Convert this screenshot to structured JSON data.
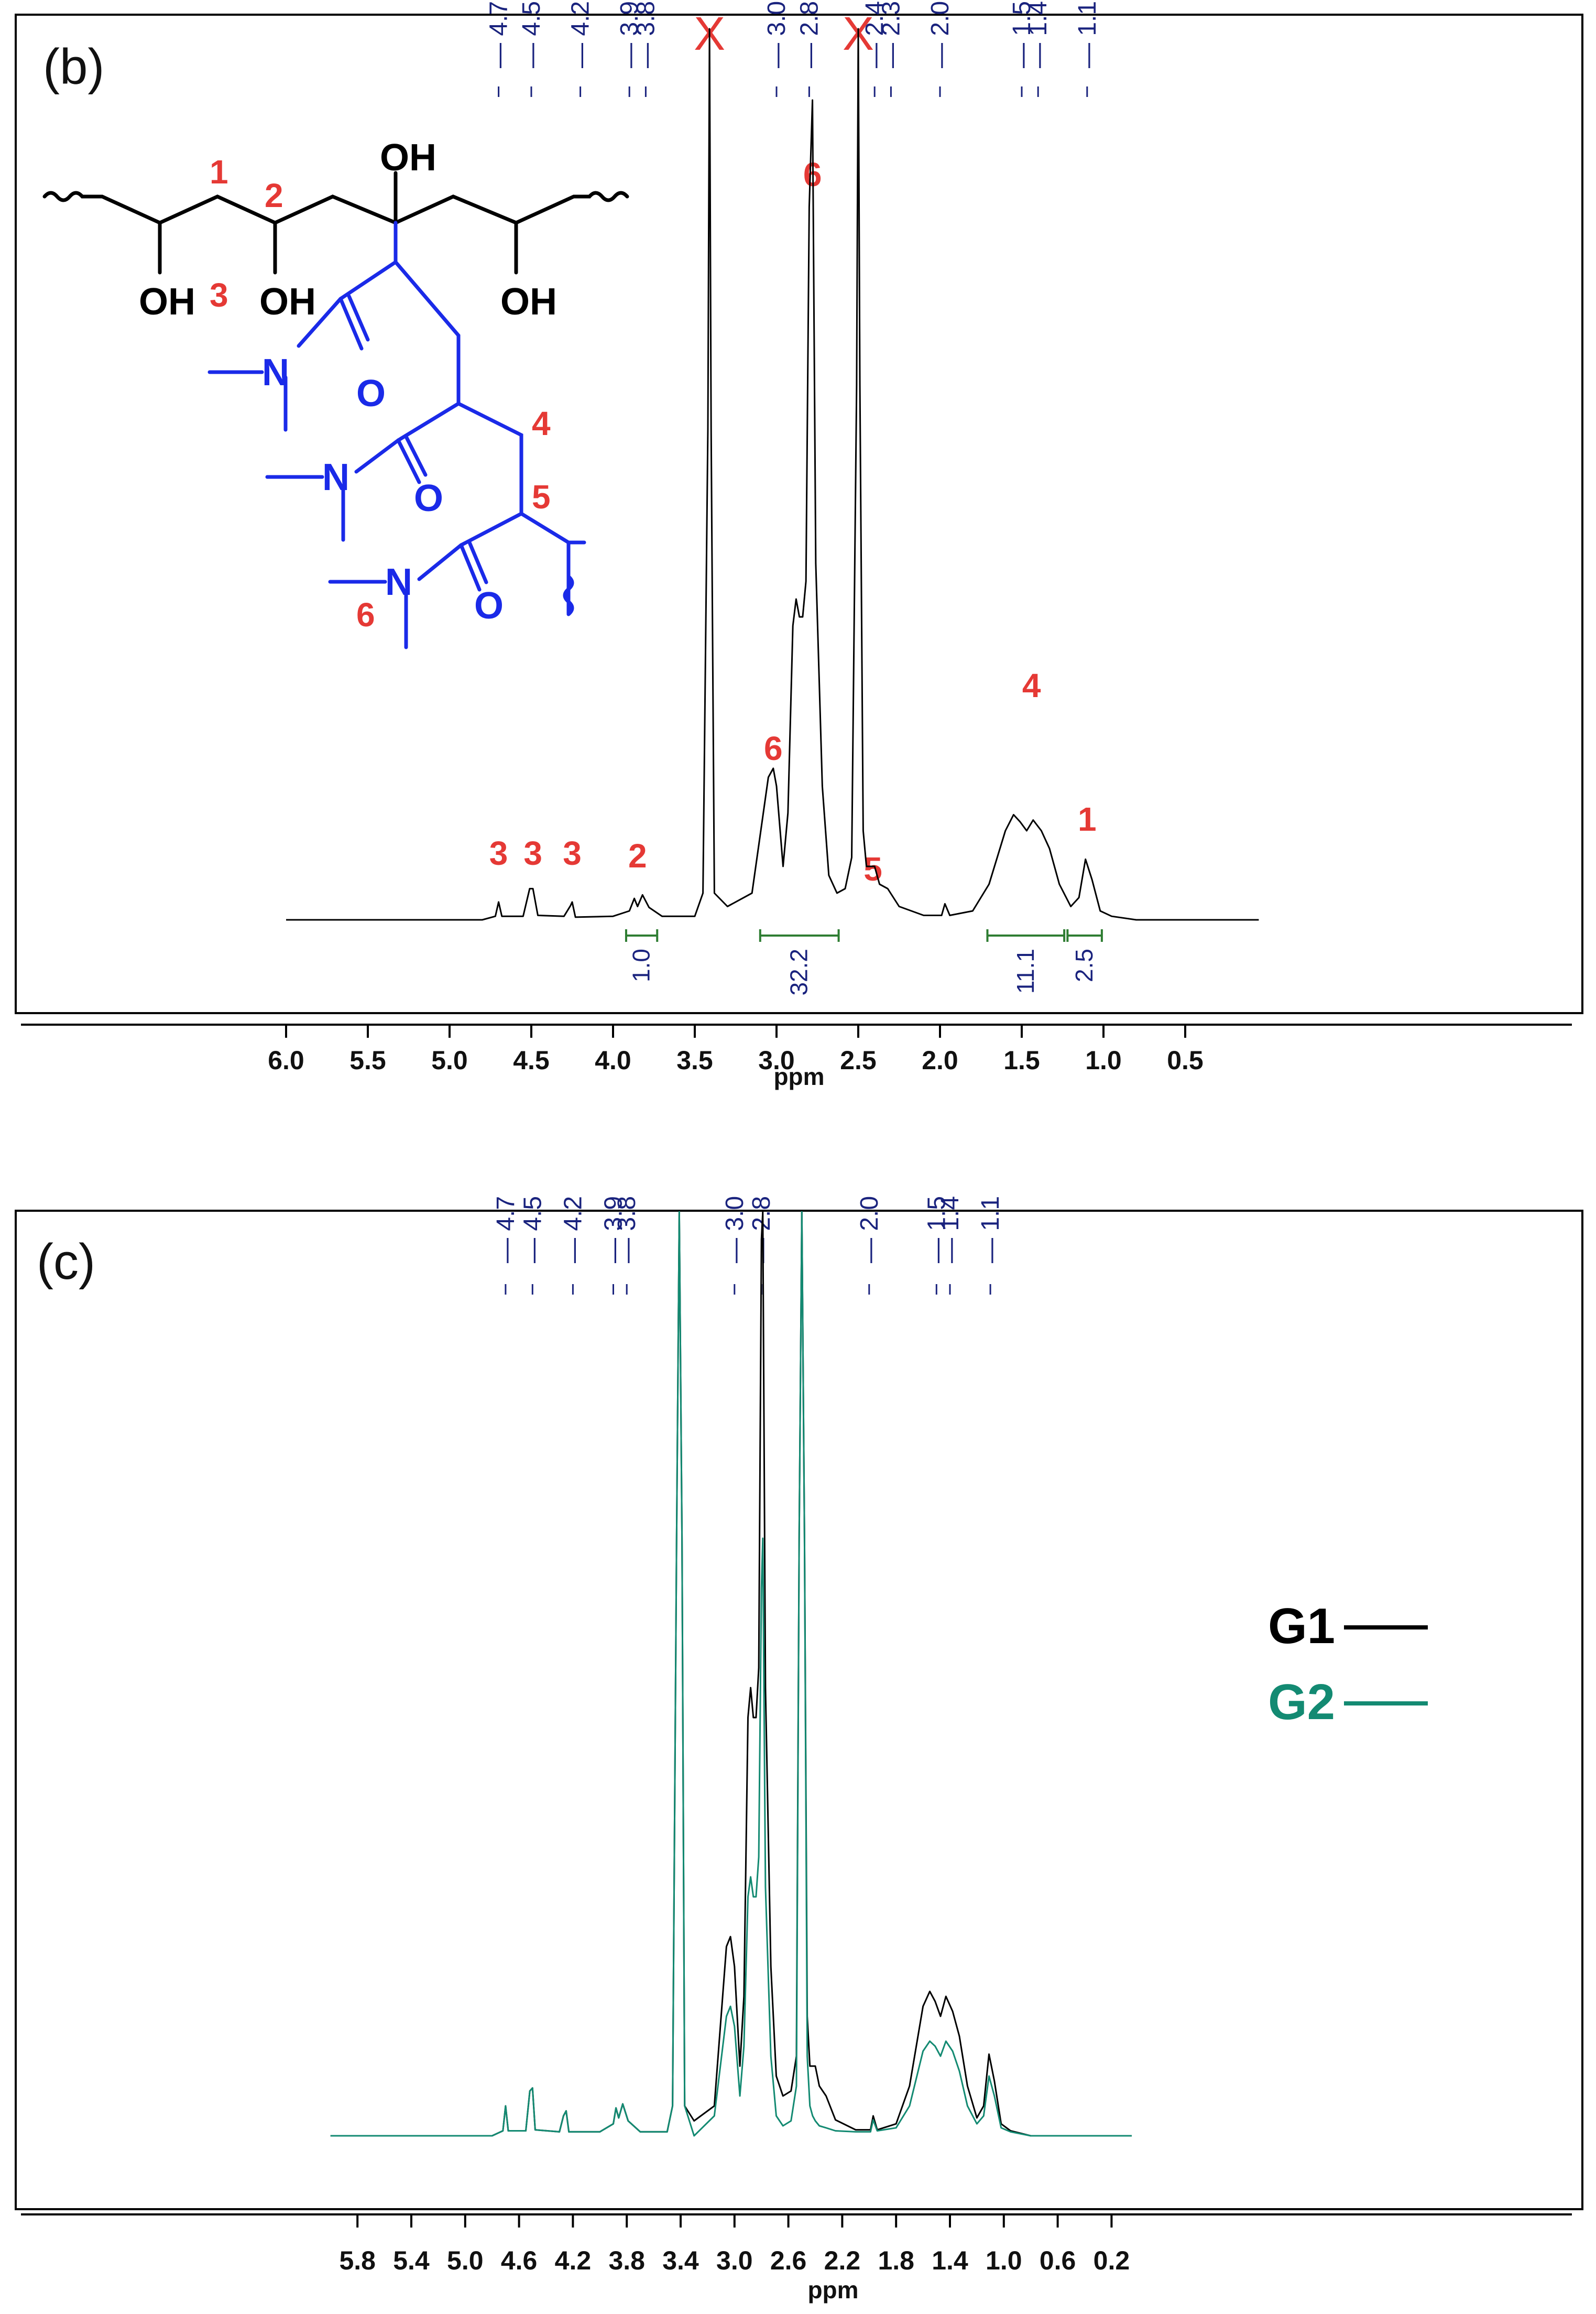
{
  "colors": {
    "black_series": "#000000",
    "green_series": "#138a72",
    "peak_label_blue": "#1a237e",
    "assignment_red": "#e53935",
    "integral_green": "#2e7d32",
    "structure_blue": "#1a2ae8"
  },
  "chart_data": [
    {
      "type": "line",
      "panel": "(b)",
      "xlabel": "ppm",
      "xlim": [
        6.0,
        0.0
      ],
      "x_ticks": [
        "6.0",
        "5.5",
        "5.0",
        "4.5",
        "4.0",
        "3.5",
        "3.0",
        "2.5",
        "2.0",
        "1.5",
        "1.0",
        "0.5"
      ],
      "peak_labels": [
        "4.7",
        "4.5",
        "4.2",
        "3.9",
        "3.8",
        "3.0",
        "2.8",
        "2.4",
        "2.3",
        "2.0",
        "1.5",
        "1.4",
        "1.1"
      ],
      "excluded_peaks": [
        {
          "ppm": 3.41,
          "mark": "X"
        },
        {
          "ppm": 2.5,
          "mark": "X"
        }
      ],
      "integrals": [
        {
          "from": 3.92,
          "to": 3.73,
          "value": "1.0"
        },
        {
          "from": 3.1,
          "to": 2.62,
          "value": "32.2"
        },
        {
          "from": 1.71,
          "to": 1.24,
          "value": "11.1"
        },
        {
          "from": 1.22,
          "to": 1.01,
          "value": "2.5"
        }
      ],
      "assignments": [
        {
          "ppm": 4.7,
          "label": "3"
        },
        {
          "ppm": 4.49,
          "label": "3"
        },
        {
          "ppm": 4.25,
          "label": "3"
        },
        {
          "ppm": 3.85,
          "label": "2"
        },
        {
          "ppm": 3.02,
          "label": "6"
        },
        {
          "ppm": 2.78,
          "label": "6"
        },
        {
          "ppm": 2.41,
          "label": "5"
        },
        {
          "ppm": 1.44,
          "label": "4"
        },
        {
          "ppm": 1.1,
          "label": "1"
        }
      ],
      "series": [
        {
          "name": "",
          "color": "#000000",
          "x": [
            6.0,
            4.8,
            4.72,
            4.7,
            4.68,
            4.55,
            4.51,
            4.49,
            4.46,
            4.3,
            4.26,
            4.25,
            4.23,
            4.0,
            3.9,
            3.87,
            3.85,
            3.82,
            3.78,
            3.7,
            3.5,
            3.45,
            3.42,
            3.41,
            3.4,
            3.38,
            3.3,
            3.15,
            3.05,
            3.02,
            3.0,
            2.96,
            2.93,
            2.9,
            2.88,
            2.86,
            2.84,
            2.82,
            2.8,
            2.78,
            2.76,
            2.72,
            2.68,
            2.63,
            2.58,
            2.54,
            2.51,
            2.5,
            2.49,
            2.47,
            2.45,
            2.42,
            2.4,
            2.37,
            2.32,
            2.25,
            2.1,
            1.99,
            1.97,
            1.94,
            1.8,
            1.7,
            1.6,
            1.55,
            1.51,
            1.47,
            1.43,
            1.38,
            1.33,
            1.27,
            1.2,
            1.15,
            1.11,
            1.07,
            1.02,
            0.95,
            0.8,
            0.5,
            0.05
          ],
          "y": [
            0.0,
            0.0,
            0.004,
            0.02,
            0.004,
            0.004,
            0.035,
            0.035,
            0.005,
            0.004,
            0.016,
            0.02,
            0.003,
            0.004,
            0.01,
            0.024,
            0.015,
            0.028,
            0.014,
            0.004,
            0.004,
            0.03,
            0.55,
            1.0,
            0.55,
            0.03,
            0.015,
            0.03,
            0.16,
            0.17,
            0.15,
            0.06,
            0.12,
            0.33,
            0.36,
            0.34,
            0.34,
            0.38,
            0.8,
            0.92,
            0.4,
            0.15,
            0.05,
            0.03,
            0.035,
            0.07,
            0.6,
            1.0,
            0.6,
            0.1,
            0.06,
            0.06,
            0.06,
            0.04,
            0.035,
            0.015,
            0.005,
            0.005,
            0.018,
            0.005,
            0.01,
            0.04,
            0.1,
            0.118,
            0.11,
            0.1,
            0.112,
            0.1,
            0.08,
            0.04,
            0.015,
            0.025,
            0.068,
            0.045,
            0.01,
            0.004,
            0.0,
            0.0,
            0.0
          ]
        }
      ]
    },
    {
      "type": "line",
      "panel": "(c)",
      "xlabel": "ppm",
      "xlim": [
        6.0,
        0.0
      ],
      "x_ticks": [
        "5.8",
        "5.4",
        "5.0",
        "4.6",
        "4.2",
        "3.8",
        "3.4",
        "3.0",
        "2.6",
        "2.2",
        "1.8",
        "1.4",
        "1.0",
        "0.6",
        "0.2"
      ],
      "peak_labels": [
        "4.7",
        "4.5",
        "4.2",
        "3.9",
        "3.8",
        "3.0",
        "2.8",
        "2.0",
        "1.5",
        "1.4",
        "1.1"
      ],
      "series": [
        {
          "name": "G1",
          "color": "#000000",
          "x": [
            6.0,
            4.8,
            4.72,
            4.7,
            4.68,
            4.55,
            4.52,
            4.5,
            4.48,
            4.3,
            4.27,
            4.25,
            4.23,
            4.0,
            3.9,
            3.88,
            3.86,
            3.83,
            3.79,
            3.7,
            3.5,
            3.46,
            3.43,
            3.41,
            3.39,
            3.37,
            3.3,
            3.15,
            3.06,
            3.03,
            3.0,
            2.96,
            2.93,
            2.9,
            2.88,
            2.86,
            2.84,
            2.82,
            2.8,
            2.79,
            2.77,
            2.73,
            2.69,
            2.64,
            2.58,
            2.54,
            2.52,
            2.5,
            2.48,
            2.46,
            2.44,
            2.42,
            2.4,
            2.37,
            2.32,
            2.25,
            2.1,
            1.99,
            1.97,
            1.94,
            1.8,
            1.7,
            1.6,
            1.55,
            1.51,
            1.47,
            1.43,
            1.38,
            1.33,
            1.27,
            1.2,
            1.15,
            1.11,
            1.07,
            1.02,
            0.95,
            0.8,
            0.5,
            0.05
          ],
          "y": [
            0.0,
            0.0,
            0.005,
            0.03,
            0.005,
            0.005,
            0.045,
            0.048,
            0.006,
            0.004,
            0.02,
            0.025,
            0.004,
            0.004,
            0.012,
            0.028,
            0.018,
            0.032,
            0.015,
            0.004,
            0.004,
            0.03,
            0.6,
            1.1,
            0.6,
            0.03,
            0.015,
            0.03,
            0.19,
            0.2,
            0.17,
            0.07,
            0.14,
            0.42,
            0.45,
            0.42,
            0.42,
            0.47,
            0.9,
            0.98,
            0.45,
            0.17,
            0.06,
            0.04,
            0.045,
            0.08,
            0.6,
            1.1,
            0.6,
            0.12,
            0.07,
            0.07,
            0.07,
            0.05,
            0.04,
            0.016,
            0.006,
            0.006,
            0.02,
            0.006,
            0.012,
            0.05,
            0.13,
            0.145,
            0.135,
            0.12,
            0.14,
            0.125,
            0.1,
            0.05,
            0.018,
            0.03,
            0.082,
            0.055,
            0.012,
            0.005,
            0.0,
            0.0,
            0.0
          ]
        },
        {
          "name": "G2",
          "color": "#138a72",
          "x": [
            6.0,
            4.8,
            4.72,
            4.7,
            4.68,
            4.55,
            4.52,
            4.5,
            4.48,
            4.3,
            4.27,
            4.25,
            4.23,
            4.0,
            3.9,
            3.88,
            3.86,
            3.83,
            3.79,
            3.7,
            3.5,
            3.46,
            3.43,
            3.41,
            3.39,
            3.37,
            3.3,
            3.15,
            3.06,
            3.03,
            3.0,
            2.96,
            2.93,
            2.9,
            2.88,
            2.86,
            2.84,
            2.82,
            2.8,
            2.79,
            2.77,
            2.73,
            2.69,
            2.64,
            2.58,
            2.54,
            2.52,
            2.5,
            2.48,
            2.46,
            2.44,
            2.42,
            2.4,
            2.37,
            2.32,
            2.25,
            2.1,
            1.99,
            1.97,
            1.94,
            1.8,
            1.7,
            1.6,
            1.55,
            1.51,
            1.47,
            1.43,
            1.38,
            1.33,
            1.27,
            1.2,
            1.15,
            1.11,
            1.07,
            1.02,
            0.95,
            0.8,
            0.5,
            0.05
          ],
          "y": [
            0.0,
            0.0,
            0.005,
            0.03,
            0.005,
            0.005,
            0.045,
            0.048,
            0.006,
            0.004,
            0.02,
            0.025,
            0.004,
            0.004,
            0.012,
            0.028,
            0.018,
            0.032,
            0.015,
            0.004,
            0.004,
            0.03,
            0.6,
            1.1,
            0.6,
            0.03,
            0.0,
            0.02,
            0.12,
            0.13,
            0.11,
            0.04,
            0.09,
            0.24,
            0.26,
            0.24,
            0.24,
            0.28,
            0.55,
            0.6,
            0.25,
            0.08,
            0.02,
            0.01,
            0.015,
            0.05,
            0.6,
            1.1,
            0.6,
            0.08,
            0.03,
            0.02,
            0.015,
            0.01,
            0.008,
            0.005,
            0.004,
            0.004,
            0.016,
            0.005,
            0.008,
            0.03,
            0.085,
            0.095,
            0.09,
            0.08,
            0.095,
            0.085,
            0.065,
            0.03,
            0.012,
            0.02,
            0.06,
            0.04,
            0.008,
            0.004,
            0.0,
            0.0,
            0.0
          ]
        }
      ]
    }
  ],
  "panel_b": {
    "letter": "(b)",
    "structure": {
      "oh_labels": [
        "OH",
        "OH",
        "OH",
        "OH"
      ],
      "n_labels": [
        "N",
        "N",
        "N"
      ],
      "o_labels": [
        "O",
        "O",
        "O"
      ],
      "position_labels": [
        "1",
        "2",
        "3",
        "4",
        "5",
        "6"
      ]
    }
  },
  "panel_c": {
    "letter": "(c)",
    "legend": [
      {
        "label": "G1",
        "color": "#000000"
      },
      {
        "label": "G2",
        "color": "#138a72"
      }
    ]
  }
}
